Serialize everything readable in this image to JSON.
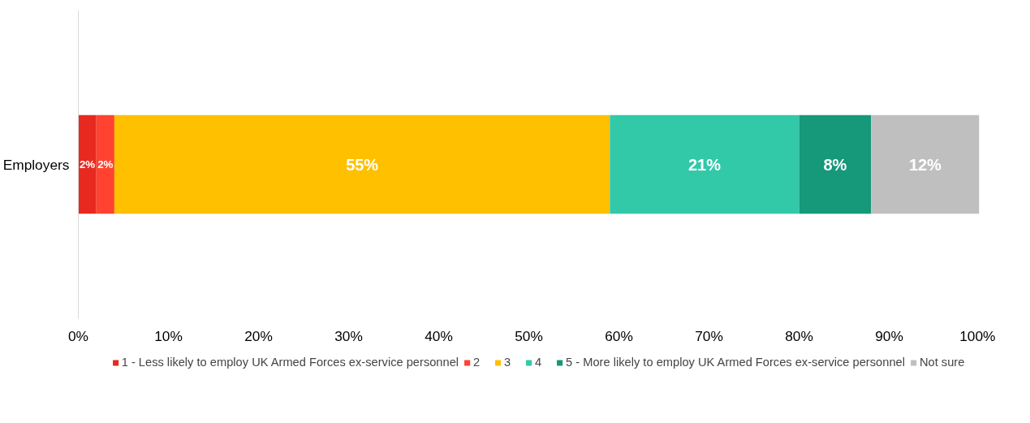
{
  "chart_data": {
    "type": "bar",
    "orientation": "horizontal",
    "stacked": true,
    "categories": [
      "Employers"
    ],
    "series": [
      {
        "name": "1 - Less likely to employ UK Armed Forces ex-service personnel",
        "color": "#e8291f",
        "values": [
          2
        ],
        "value_labels": [
          "2%"
        ]
      },
      {
        "name": "2",
        "color": "#ff4330",
        "values": [
          2
        ],
        "value_labels": [
          "2%"
        ]
      },
      {
        "name": "3",
        "color": "#ffc000",
        "values": [
          55
        ],
        "value_labels": [
          "55%"
        ]
      },
      {
        "name": "4",
        "color": "#31c9a8",
        "values": [
          21
        ],
        "value_labels": [
          "21%"
        ]
      },
      {
        "name": "5 - More likely to employ UK Armed Forces ex-service personnel",
        "color": "#16987a",
        "values": [
          8
        ],
        "value_labels": [
          "8%"
        ]
      },
      {
        "name": "Not sure",
        "color": "#bfbfbf",
        "values": [
          12
        ],
        "value_labels": [
          "12%"
        ]
      }
    ],
    "xlim": [
      0,
      100
    ],
    "xticks": [
      {
        "value": 0,
        "label": "0%"
      },
      {
        "value": 10,
        "label": "10%"
      },
      {
        "value": 20,
        "label": "20%"
      },
      {
        "value": 30,
        "label": "30%"
      },
      {
        "value": 40,
        "label": "40%"
      },
      {
        "value": 50,
        "label": "50%"
      },
      {
        "value": 60,
        "label": "60%"
      },
      {
        "value": 70,
        "label": "70%"
      },
      {
        "value": 80,
        "label": "80%"
      },
      {
        "value": 90,
        "label": "90%"
      },
      {
        "value": 100,
        "label": "100%"
      }
    ],
    "legend": "bottom"
  }
}
